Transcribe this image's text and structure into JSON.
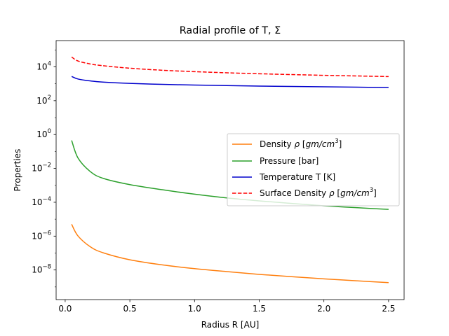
{
  "chart_data": {
    "type": "line",
    "title": "Radial profile of T, Σ",
    "xlabel": "Radius R [AU]",
    "ylabel": "Properties",
    "xlim": [
      -0.07,
      2.62
    ],
    "ylim_log10": [
      -9.75,
      5.55
    ],
    "yscale": "log",
    "grid": false,
    "legend_position": "center-right",
    "x_ticks": [
      0.0,
      0.5,
      1.0,
      1.5,
      2.0,
      2.5
    ],
    "x_tick_labels": [
      "0.0",
      "0.5",
      "1.0",
      "1.5",
      "2.0",
      "2.5"
    ],
    "y_ticks_log10": [
      -8,
      -6,
      -4,
      -2,
      0,
      2,
      4
    ],
    "y_tick_labels": [
      {
        "base": "10",
        "exp": "−8"
      },
      {
        "base": "10",
        "exp": "−6"
      },
      {
        "base": "10",
        "exp": "−4"
      },
      {
        "base": "10",
        "exp": "−2"
      },
      {
        "base": "10",
        "exp": "0"
      },
      {
        "base": "10",
        "exp": "2"
      },
      {
        "base": "10",
        "exp": "4"
      }
    ],
    "x_range": [
      0.05,
      2.5
    ],
    "series": [
      {
        "name": "Density ρ [gm/cm³]",
        "legend_parts": {
          "prefix": "Density ",
          "rho": "ρ",
          "open": " [",
          "unit": "gm/cm",
          "sup": "3",
          "close": "]"
        },
        "color": "#ff7f0e",
        "dash": "solid",
        "x": [
          0.05,
          0.1,
          0.2,
          0.3,
          0.5,
          0.75,
          1.0,
          1.25,
          1.5,
          1.75,
          2.0,
          2.25,
          2.5
        ],
        "y": [
          5e-06,
          1e-06,
          2.2e-07,
          1e-07,
          4e-08,
          2e-08,
          1.2e-08,
          8e-09,
          5.5e-09,
          4e-09,
          3e-09,
          2.3e-09,
          1.8e-09
        ]
      },
      {
        "name": "Pressure [bar]",
        "legend_parts": {
          "prefix": "Pressure [bar]"
        },
        "color": "#2ca02c",
        "dash": "solid",
        "x": [
          0.05,
          0.1,
          0.2,
          0.3,
          0.5,
          0.75,
          1.0,
          1.25,
          1.5,
          1.75,
          2.0,
          2.25,
          2.5
        ],
        "y": [
          0.45,
          0.04,
          0.006,
          0.0025,
          0.0011,
          0.00055,
          0.0003,
          0.00018,
          0.00012,
          8.5e-05,
          6.2e-05,
          4.8e-05,
          3.8e-05
        ]
      },
      {
        "name": "Temperature T [K]",
        "legend_parts": {
          "prefix": "Temperature T [K]"
        },
        "color": "#0000cc",
        "dash": "solid",
        "x": [
          0.05,
          0.1,
          0.2,
          0.3,
          0.5,
          0.75,
          1.0,
          1.25,
          1.5,
          1.75,
          2.0,
          2.25,
          2.5
        ],
        "y": [
          2700,
          1900,
          1450,
          1250,
          1050,
          920,
          840,
          780,
          730,
          690,
          660,
          630,
          600
        ]
      },
      {
        "name": "Surface Density ρ [gm/cm³]",
        "legend_parts": {
          "prefix": "Surface Density ",
          "rho": "ρ",
          "open": " [",
          "unit": "gm/cm",
          "sup": "3",
          "close": "]"
        },
        "color": "#ff0000",
        "dash": "dashed",
        "x": [
          0.05,
          0.1,
          0.2,
          0.3,
          0.5,
          0.75,
          1.0,
          1.25,
          1.5,
          1.75,
          2.0,
          2.25,
          2.5
        ],
        "y": [
          38000,
          22000,
          14500,
          11500,
          8300,
          6300,
          5200,
          4450,
          3900,
          3500,
          3150,
          2900,
          2650
        ]
      }
    ]
  }
}
